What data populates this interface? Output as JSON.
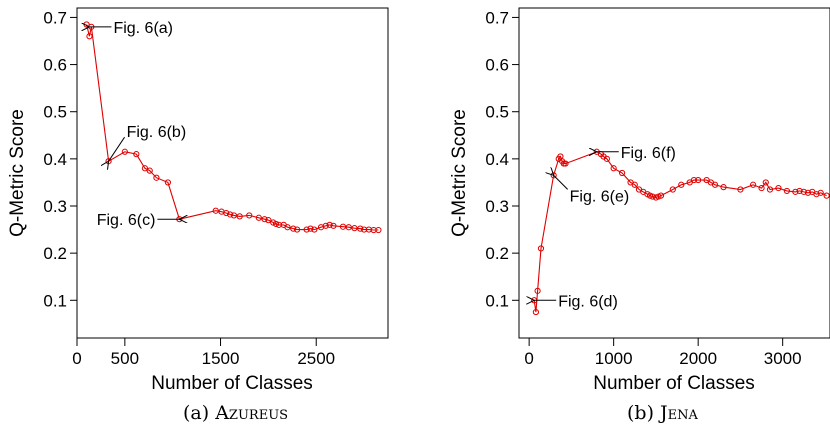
{
  "colors": {
    "series": "#e00000",
    "axis": "#000000"
  },
  "captions": [
    {
      "label": "(a)",
      "name": "Azureus"
    },
    {
      "label": "(b)",
      "name": "Jena"
    }
  ],
  "chart_data": [
    {
      "type": "line",
      "title": "",
      "xlabel": "Number of Classes",
      "ylabel": "Q-Metric Score",
      "xlim": [
        0,
        3250
      ],
      "ylim": [
        0.02,
        0.72
      ],
      "xticks": [
        0,
        500,
        1500,
        2500
      ],
      "xtick_labels": [
        "0",
        "500",
        "1500",
        "2500"
      ],
      "yticks": [
        0.1,
        0.2,
        0.3,
        0.4,
        0.5,
        0.6,
        0.7
      ],
      "ytick_labels": [
        "0.1",
        "0.2",
        "0.3",
        "0.4",
        "0.5",
        "0.6",
        "0.7"
      ],
      "grid": false,
      "series": [
        {
          "points": [
            [
              100,
              0.685
            ],
            [
              130,
              0.66
            ],
            [
              150,
              0.68
            ],
            [
              330,
              0.395
            ],
            [
              500,
              0.415
            ],
            [
              620,
              0.41
            ],
            [
              710,
              0.38
            ],
            [
              760,
              0.375
            ],
            [
              830,
              0.36
            ],
            [
              950,
              0.35
            ],
            [
              1070,
              0.272
            ],
            [
              1450,
              0.29
            ],
            [
              1510,
              0.288
            ],
            [
              1560,
              0.285
            ],
            [
              1600,
              0.282
            ],
            [
              1640,
              0.28
            ],
            [
              1700,
              0.278
            ],
            [
              1800,
              0.28
            ],
            [
              1900,
              0.275
            ],
            [
              1960,
              0.272
            ],
            [
              2000,
              0.27
            ],
            [
              2050,
              0.265
            ],
            [
              2080,
              0.262
            ],
            [
              2110,
              0.26
            ],
            [
              2160,
              0.26
            ],
            [
              2200,
              0.255
            ],
            [
              2260,
              0.252
            ],
            [
              2300,
              0.25
            ],
            [
              2400,
              0.25
            ],
            [
              2440,
              0.252
            ],
            [
              2480,
              0.25
            ],
            [
              2550,
              0.255
            ],
            [
              2600,
              0.258
            ],
            [
              2640,
              0.26
            ],
            [
              2680,
              0.258
            ],
            [
              2780,
              0.256
            ],
            [
              2840,
              0.255
            ],
            [
              2900,
              0.253
            ],
            [
              2960,
              0.252
            ],
            [
              3000,
              0.25
            ],
            [
              3050,
              0.25
            ],
            [
              3100,
              0.249
            ],
            [
              3150,
              0.249
            ]
          ]
        }
      ],
      "annotations": [
        {
          "text": "Fig. 6(a)",
          "x": 130,
          "y": 0.68,
          "dir": "right"
        },
        {
          "text": "Fig. 6(b)",
          "x": 330,
          "y": 0.395,
          "dir": "up-right"
        },
        {
          "text": "Fig. 6(c)",
          "x": 1070,
          "y": 0.272,
          "dir": "left"
        }
      ]
    },
    {
      "type": "line",
      "title": "",
      "xlabel": "Number of Classes",
      "ylabel": "Q-Metric Score",
      "xlim": [
        -120,
        3560
      ],
      "ylim": [
        0.02,
        0.72
      ],
      "xticks": [
        0,
        1000,
        2000,
        3000
      ],
      "xtick_labels": [
        "0",
        "1000",
        "2000",
        "3000"
      ],
      "yticks": [
        0.1,
        0.2,
        0.3,
        0.4,
        0.5,
        0.6,
        0.7
      ],
      "ytick_labels": [
        "0.1",
        "0.2",
        "0.3",
        "0.4",
        "0.5",
        "0.6",
        "0.7"
      ],
      "grid": false,
      "series": [
        {
          "points": [
            [
              60,
              0.1
            ],
            [
              80,
              0.075
            ],
            [
              100,
              0.12
            ],
            [
              140,
              0.21
            ],
            [
              290,
              0.365
            ],
            [
              350,
              0.4
            ],
            [
              370,
              0.405
            ],
            [
              390,
              0.395
            ],
            [
              410,
              0.39
            ],
            [
              430,
              0.39
            ],
            [
              800,
              0.415
            ],
            [
              850,
              0.41
            ],
            [
              880,
              0.405
            ],
            [
              920,
              0.4
            ],
            [
              1000,
              0.38
            ],
            [
              1100,
              0.37
            ],
            [
              1200,
              0.35
            ],
            [
              1250,
              0.345
            ],
            [
              1300,
              0.335
            ],
            [
              1350,
              0.33
            ],
            [
              1400,
              0.325
            ],
            [
              1430,
              0.322
            ],
            [
              1460,
              0.32
            ],
            [
              1500,
              0.318
            ],
            [
              1530,
              0.32
            ],
            [
              1560,
              0.322
            ],
            [
              1700,
              0.335
            ],
            [
              1800,
              0.345
            ],
            [
              1900,
              0.35
            ],
            [
              1950,
              0.355
            ],
            [
              2000,
              0.355
            ],
            [
              2100,
              0.355
            ],
            [
              2150,
              0.35
            ],
            [
              2200,
              0.345
            ],
            [
              2300,
              0.34
            ],
            [
              2500,
              0.335
            ],
            [
              2650,
              0.345
            ],
            [
              2750,
              0.338
            ],
            [
              2800,
              0.35
            ],
            [
              2850,
              0.335
            ],
            [
              2950,
              0.338
            ],
            [
              3050,
              0.332
            ],
            [
              3150,
              0.33
            ],
            [
              3200,
              0.332
            ],
            [
              3250,
              0.33
            ],
            [
              3300,
              0.328
            ],
            [
              3350,
              0.33
            ],
            [
              3400,
              0.325
            ],
            [
              3450,
              0.328
            ],
            [
              3520,
              0.322
            ]
          ]
        }
      ],
      "annotations": [
        {
          "text": "Fig. 6(d)",
          "x": 60,
          "y": 0.1,
          "dir": "right"
        },
        {
          "text": "Fig. 6(e)",
          "x": 290,
          "y": 0.365,
          "dir": "down-right"
        },
        {
          "text": "Fig. 6(f)",
          "x": 800,
          "y": 0.415,
          "dir": "right"
        }
      ]
    }
  ]
}
